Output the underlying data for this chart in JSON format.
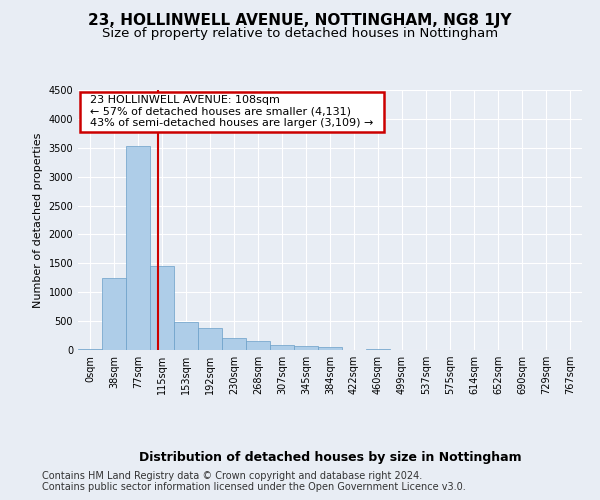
{
  "title": "23, HOLLINWELL AVENUE, NOTTINGHAM, NG8 1JY",
  "subtitle": "Size of property relative to detached houses in Nottingham",
  "xlabel": "Distribution of detached houses by size in Nottingham",
  "ylabel": "Number of detached properties",
  "bin_labels": [
    "0sqm",
    "38sqm",
    "77sqm",
    "115sqm",
    "153sqm",
    "192sqm",
    "230sqm",
    "268sqm",
    "307sqm",
    "345sqm",
    "384sqm",
    "422sqm",
    "460sqm",
    "499sqm",
    "537sqm",
    "575sqm",
    "614sqm",
    "652sqm",
    "690sqm",
    "729sqm",
    "767sqm"
  ],
  "bar_values": [
    10,
    1250,
    3530,
    1450,
    490,
    380,
    200,
    150,
    95,
    65,
    50,
    0,
    18,
    0,
    0,
    0,
    0,
    0,
    0,
    0,
    0
  ],
  "bar_color": "#aecde8",
  "bar_edge_color": "#6a9fc8",
  "vline_color": "#cc0000",
  "vline_x": 2.82,
  "ylim": [
    0,
    4500
  ],
  "yticks": [
    0,
    500,
    1000,
    1500,
    2000,
    2500,
    3000,
    3500,
    4000,
    4500
  ],
  "annotation_text": "  23 HOLLINWELL AVENUE: 108sqm  \n  ← 57% of detached houses are smaller (4,131)  \n  43% of semi-detached houses are larger (3,109) →  ",
  "annotation_box_color": "#ffffff",
  "annotation_box_edge_color": "#cc0000",
  "footer_line1": "Contains HM Land Registry data © Crown copyright and database right 2024.",
  "footer_line2": "Contains public sector information licensed under the Open Government Licence v3.0.",
  "background_color": "#e8edf4",
  "plot_bg_color": "#e8edf4",
  "grid_color": "#ffffff",
  "title_fontsize": 11,
  "subtitle_fontsize": 9.5,
  "xlabel_fontsize": 9,
  "ylabel_fontsize": 8,
  "tick_fontsize": 7,
  "footer_fontsize": 7,
  "ann_fontsize": 8
}
